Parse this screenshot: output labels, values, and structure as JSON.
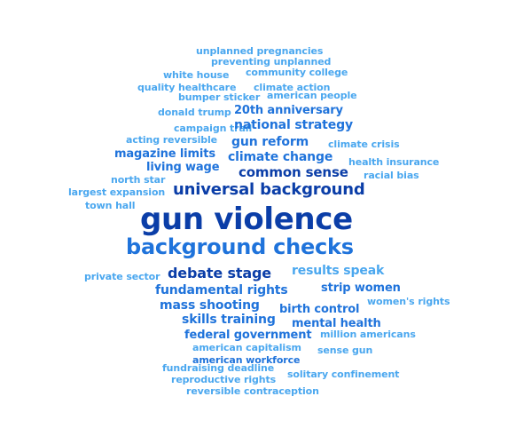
{
  "colors": {
    "dark": "#0b3ea8",
    "medium": "#1f73db",
    "light": "#4aa7ef",
    "lighter": "#5bb4f3"
  },
  "word_cloud": {
    "words": [
      {
        "text": "unplanned pregnancies",
        "size": 11,
        "tone": "light"
      },
      {
        "text": "preventing unplanned",
        "size": 11,
        "tone": "light"
      },
      {
        "text": "white house",
        "size": 11,
        "tone": "light"
      },
      {
        "text": "community college",
        "size": 11,
        "tone": "light"
      },
      {
        "text": "quality healthcare",
        "size": 11,
        "tone": "light"
      },
      {
        "text": "climate action",
        "size": 11,
        "tone": "light"
      },
      {
        "text": "bumper sticker",
        "size": 11,
        "tone": "light"
      },
      {
        "text": "american people",
        "size": 11,
        "tone": "light"
      },
      {
        "text": "donald trump",
        "size": 11,
        "tone": "light"
      },
      {
        "text": "20th anniversary",
        "size": 13,
        "tone": "medium"
      },
      {
        "text": "campaign trail",
        "size": 11,
        "tone": "light"
      },
      {
        "text": "national strategy",
        "size": 14,
        "tone": "medium"
      },
      {
        "text": "acting reversible",
        "size": 11,
        "tone": "light"
      },
      {
        "text": "gun reform",
        "size": 14,
        "tone": "medium"
      },
      {
        "text": "climate crisis",
        "size": 11,
        "tone": "light"
      },
      {
        "text": "magazine limits",
        "size": 13,
        "tone": "medium"
      },
      {
        "text": "climate change",
        "size": 14,
        "tone": "medium"
      },
      {
        "text": "living wage",
        "size": 13,
        "tone": "medium"
      },
      {
        "text": "health insurance",
        "size": 11,
        "tone": "light"
      },
      {
        "text": "common sense",
        "size": 15,
        "tone": "dark"
      },
      {
        "text": "north star",
        "size": 11,
        "tone": "light"
      },
      {
        "text": "racial bias",
        "size": 11,
        "tone": "light"
      },
      {
        "text": "universal background",
        "size": 18,
        "tone": "dark"
      },
      {
        "text": "largest expansion",
        "size": 11,
        "tone": "light"
      },
      {
        "text": "town hall",
        "size": 11,
        "tone": "light"
      },
      {
        "text": "gun violence",
        "size": 34,
        "tone": "dark"
      },
      {
        "text": "background checks",
        "size": 24,
        "tone": "medium"
      },
      {
        "text": "private sector",
        "size": 11,
        "tone": "light"
      },
      {
        "text": "debate stage",
        "size": 16,
        "tone": "dark"
      },
      {
        "text": "results speak",
        "size": 14,
        "tone": "light"
      },
      {
        "text": "fundamental rights",
        "size": 14,
        "tone": "medium"
      },
      {
        "text": "strip women",
        "size": 13,
        "tone": "medium"
      },
      {
        "text": "mass shooting",
        "size": 14,
        "tone": "medium"
      },
      {
        "text": "women's rights",
        "size": 11,
        "tone": "light"
      },
      {
        "text": "birth control",
        "size": 13,
        "tone": "medium"
      },
      {
        "text": "skills training",
        "size": 14,
        "tone": "medium"
      },
      {
        "text": "mental health",
        "size": 13,
        "tone": "medium"
      },
      {
        "text": "federal government",
        "size": 13,
        "tone": "medium"
      },
      {
        "text": "million americans",
        "size": 11,
        "tone": "light"
      },
      {
        "text": "american capitalism",
        "size": 11,
        "tone": "light"
      },
      {
        "text": "sense gun",
        "size": 11,
        "tone": "light"
      },
      {
        "text": "american workforce",
        "size": 11,
        "tone": "medium"
      },
      {
        "text": "fundraising deadline",
        "size": 11,
        "tone": "light"
      },
      {
        "text": "solitary confinement",
        "size": 11,
        "tone": "light"
      },
      {
        "text": "reproductive rights",
        "size": 11,
        "tone": "light"
      },
      {
        "text": "reversible contraception",
        "size": 11,
        "tone": "light"
      }
    ]
  }
}
